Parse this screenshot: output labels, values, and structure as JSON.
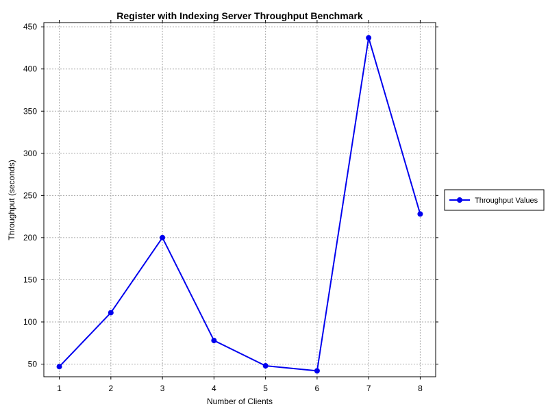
{
  "chart_data": {
    "type": "line",
    "title": "Register with Indexing Server Throughput Benchmark",
    "xlabel": "Number of Clients",
    "ylabel": "Throughput (seconds)",
    "x": [
      1,
      2,
      3,
      4,
      5,
      6,
      7,
      8
    ],
    "xlim": [
      0.7,
      8.3
    ],
    "ylim": [
      35,
      455
    ],
    "xticks": [
      "1",
      "2",
      "3",
      "4",
      "5",
      "6",
      "7",
      "8"
    ],
    "yticks": [
      "50",
      "100",
      "150",
      "200",
      "250",
      "300",
      "350",
      "400",
      "450"
    ],
    "ytick_values": [
      50,
      100,
      150,
      200,
      250,
      300,
      350,
      400,
      450
    ],
    "grid": true,
    "legend_position": "right",
    "series": [
      {
        "name": "Throughput Values",
        "values": [
          47,
          111,
          200,
          78,
          48,
          42,
          437,
          228
        ],
        "color": "#0000ee"
      }
    ]
  }
}
